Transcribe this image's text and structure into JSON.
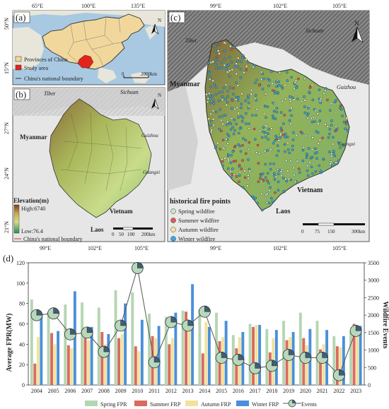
{
  "panel_a": {
    "tag": "(a)",
    "lon_ticks": [
      "65°E",
      "100°E",
      "135°E"
    ],
    "lat_ticks": [
      "50°N",
      "15°N"
    ],
    "north": "N",
    "scale": [
      "0",
      "2000km"
    ],
    "legend": [
      "Provinces of China",
      "Study area",
      "China's national boundary"
    ],
    "colors": {
      "ocean": "#9fc3de",
      "land": "#f2d79c",
      "study": "#e3241b"
    }
  },
  "panel_b": {
    "tag": "(b)",
    "lat_ticks": [
      "27°N",
      "24°N",
      "21°N"
    ],
    "lon_ticks": [
      "99°E",
      "102°E",
      "105°E"
    ],
    "place_labels": [
      "Tibet",
      "Sichuan",
      "Myanmar",
      "Guizhou",
      "Guangxi",
      "Vietnam",
      "Laos"
    ],
    "north": "N",
    "elevation": {
      "title": "Elevation(m)",
      "high": "High:6740",
      "low": "Low:76.4"
    },
    "scale": [
      "0",
      "50",
      "100",
      "200km"
    ],
    "boundary_label": "China's national boundary"
  },
  "panel_c": {
    "tag": "(c)",
    "lon_ticks": [
      "99°E",
      "102°E",
      "105°E"
    ],
    "place_labels": [
      "Tibet",
      "Sichuan",
      "Myanmar",
      "Guizhou",
      "Guangxi",
      "Vietnam",
      "Laos"
    ],
    "north": "N",
    "legend_title": "historical fire points",
    "legend": [
      {
        "label": "Spring wildfire",
        "color": "#c8e6c9"
      },
      {
        "label": "Summer wildfire",
        "color": "#e05a4e"
      },
      {
        "label": "Autumn wildfire",
        "color": "#f3e4a0"
      },
      {
        "label": "Winter wildfire",
        "color": "#3da6e0"
      }
    ],
    "scale": [
      "0",
      "75",
      "150",
      "300km"
    ]
  },
  "chart_data": {
    "type": "bar",
    "tag": "(d)",
    "categories": [
      "2004",
      "2005",
      "2006",
      "2007",
      "2008",
      "2009",
      "2010",
      "2011",
      "2012",
      "2013",
      "2014",
      "2015",
      "2016",
      "2017",
      "2018",
      "2019",
      "2020",
      "2021",
      "2022",
      "2023"
    ],
    "ylabel": "Average FPR(MW)",
    "y2label": "Wildfire Events",
    "ylim": [
      0,
      120
    ],
    "y2lim": [
      0,
      3500
    ],
    "yticks": [
      "0",
      "20",
      "40",
      "60",
      "80",
      "100",
      "120"
    ],
    "y2ticks": [
      "0",
      "500",
      "1000",
      "1500",
      "2000",
      "2500",
      "3000",
      "3500"
    ],
    "series": [
      {
        "name": "Spring FPR",
        "color": "#b5d6b2",
        "values": [
          84,
          72,
          79,
          81,
          76,
          93,
          91,
          70,
          67,
          73,
          74,
          71,
          49,
          60,
          55,
          63,
          71,
          63,
          48,
          53
        ]
      },
      {
        "name": "Summer FRP",
        "color": "#d96b5f",
        "values": [
          21,
          51,
          39,
          48,
          52,
          46,
          38,
          48,
          40,
          72,
          31,
          43,
          36,
          57,
          32,
          44,
          46,
          35,
          38,
          60
        ]
      },
      {
        "name": "Autumn FRP",
        "color": "#f2e29b",
        "values": [
          47,
          40,
          36,
          44,
          40,
          50,
          33,
          46,
          46,
          59,
          62,
          47,
          47,
          59,
          46,
          47,
          39,
          40,
          37,
          55
        ]
      },
      {
        "name": "Winter FRP",
        "color": "#4a90d9",
        "values": [
          69,
          53,
          92,
          57,
          50,
          80,
          64,
          58,
          71,
          99,
          57,
          63,
          52,
          59,
          54,
          52,
          55,
          54,
          48,
          58
        ]
      }
    ],
    "line": {
      "name": "Events",
      "values": [
        2000,
        2050,
        1450,
        1500,
        950,
        1700,
        3350,
        650,
        1800,
        1700,
        2100,
        780,
        720,
        480,
        550,
        860,
        780,
        780,
        280,
        1550
      ]
    }
  }
}
